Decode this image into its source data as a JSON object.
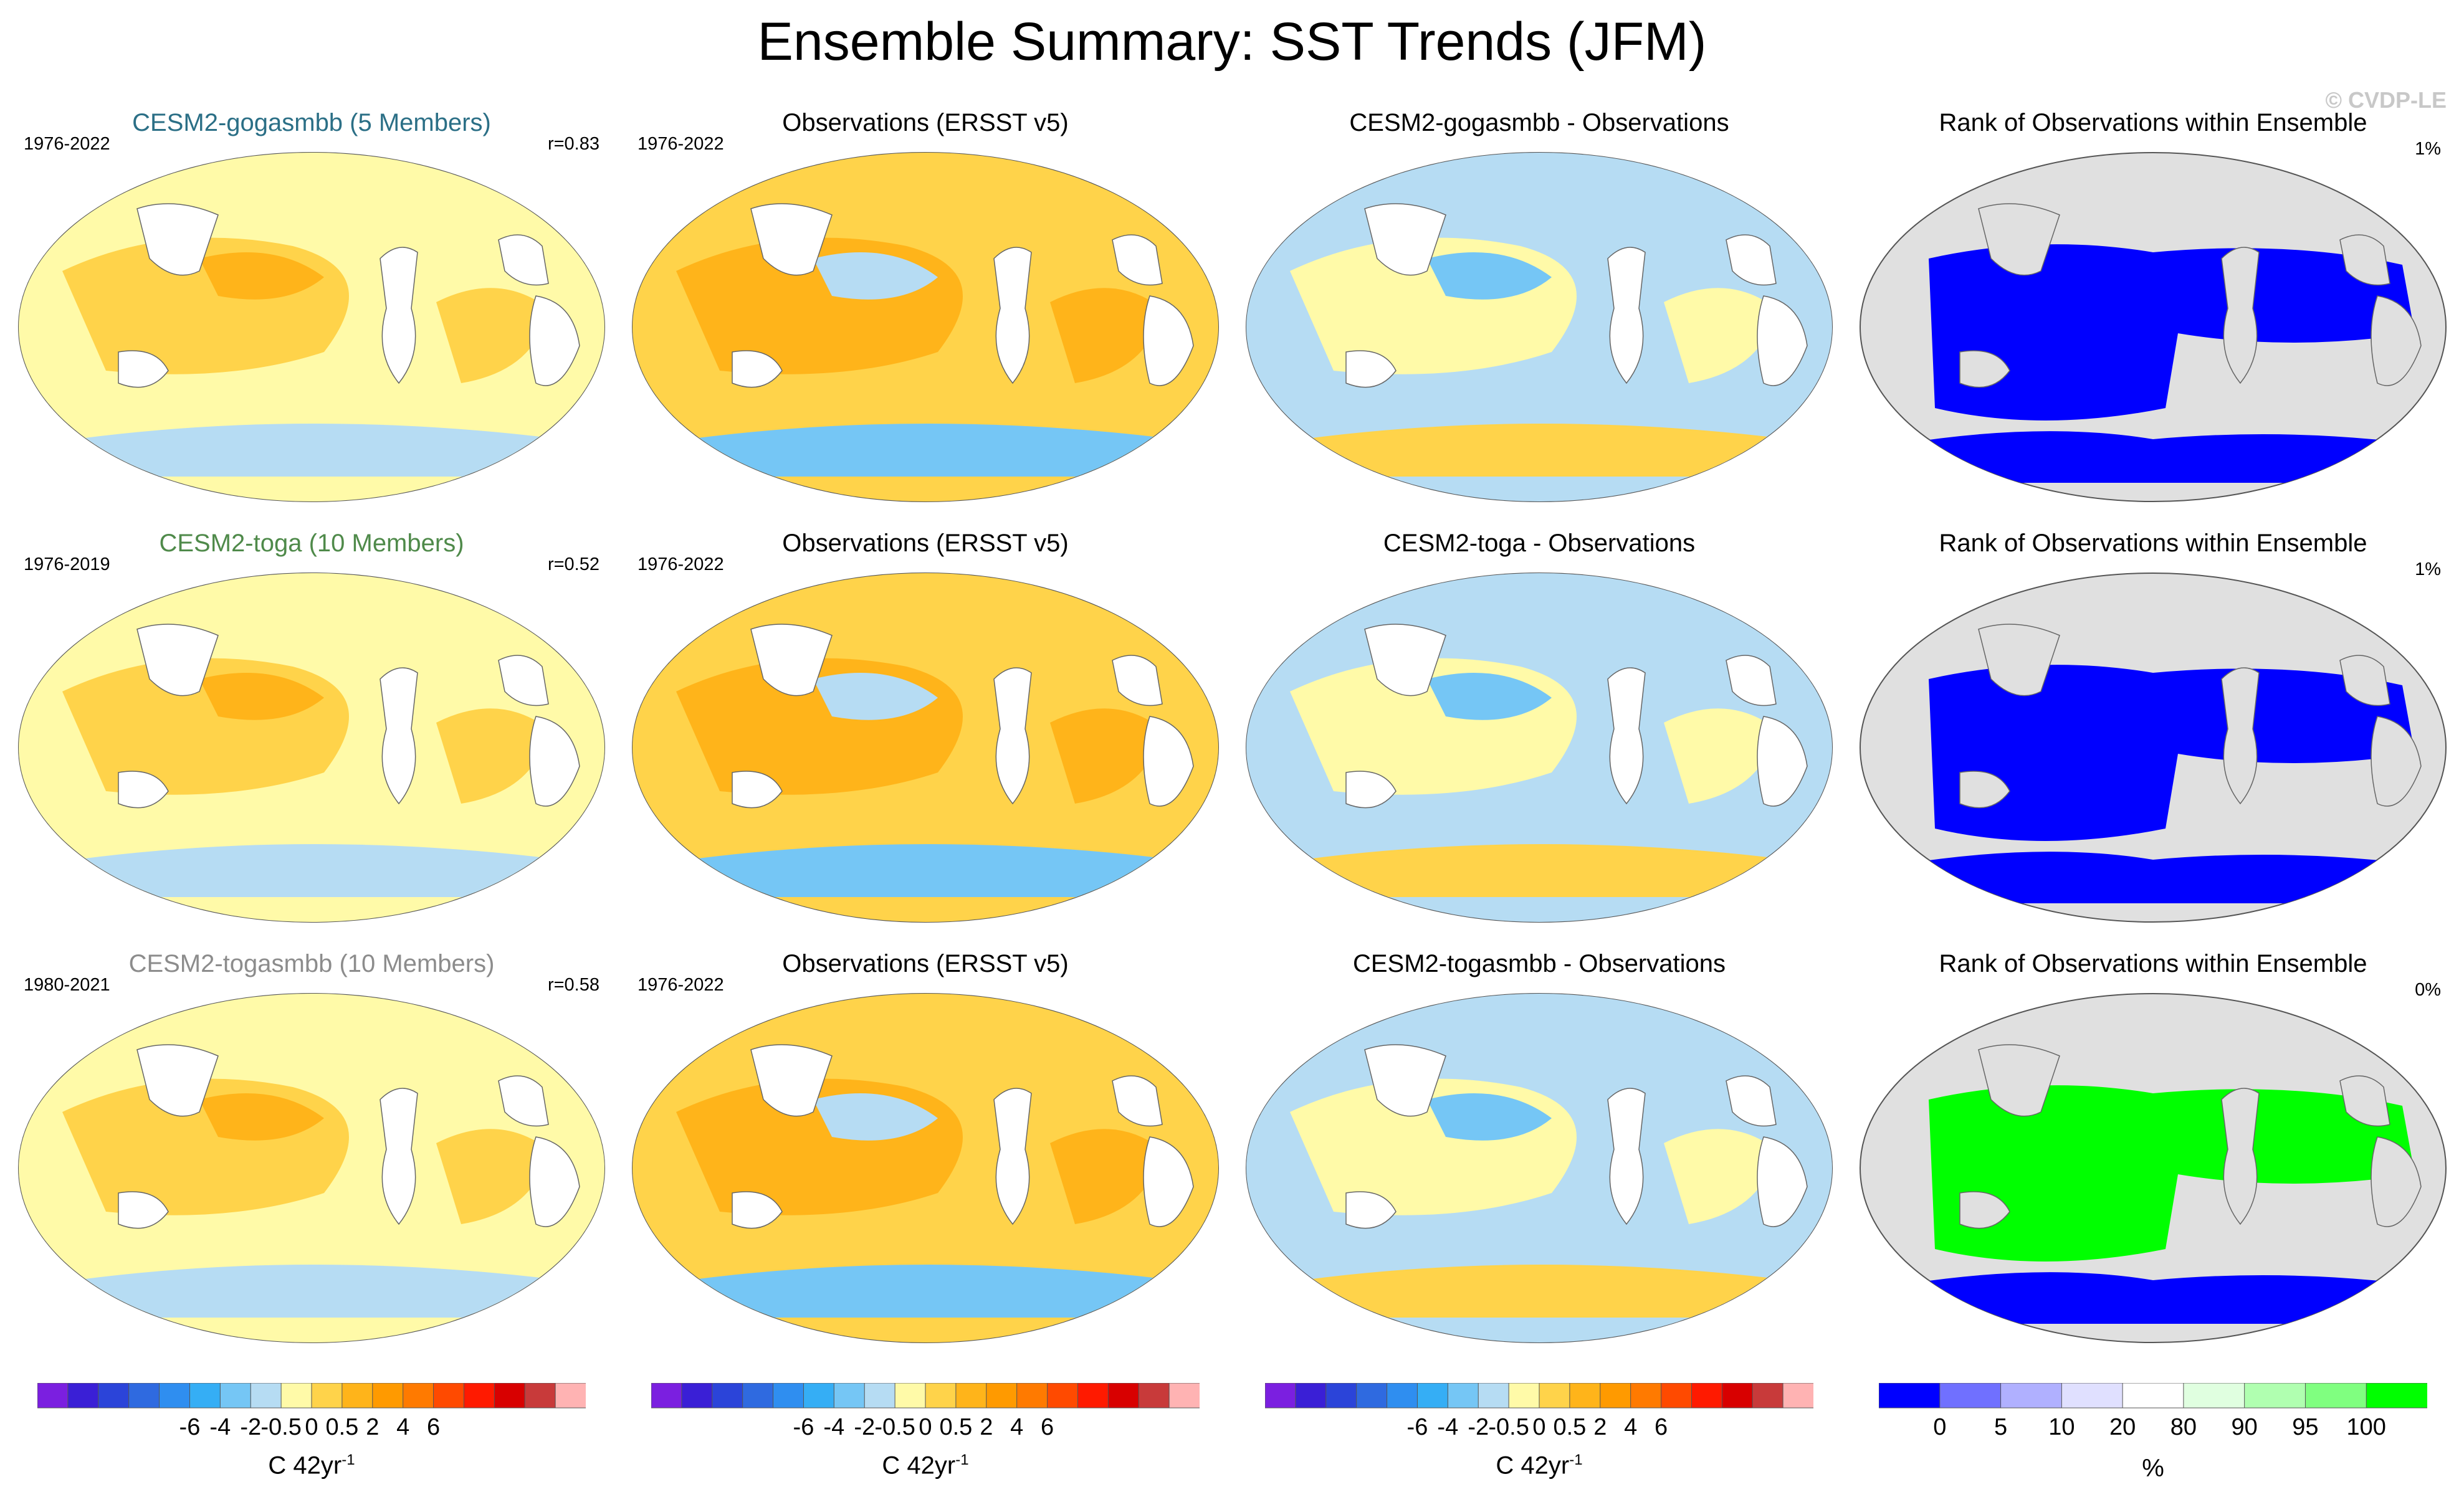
{
  "title": "Ensemble Summary: SST Trends (JFM)",
  "credit": "© CVDP-LE",
  "rows": [
    {
      "model": {
        "title": "CESM2-gogasmbb (5 Members)",
        "title_color": "#2b6f86",
        "period": "1976-2022",
        "r": "r=0.83"
      },
      "obs": {
        "title": "Observations (ERSST v5)",
        "period": "1976-2022"
      },
      "diff": {
        "title": "CESM2-gogasmbb - Observations"
      },
      "rank": {
        "title": "Rank of Observations within Ensemble",
        "pct": "1%"
      }
    },
    {
      "model": {
        "title": "CESM2-toga (10 Members)",
        "title_color": "#4f8a4a",
        "period": "1976-2019",
        "r": "r=0.52"
      },
      "obs": {
        "title": "Observations (ERSST v5)",
        "period": "1976-2022"
      },
      "diff": {
        "title": "CESM2-toga - Observations"
      },
      "rank": {
        "title": "Rank of Observations within Ensemble",
        "pct": "1%"
      }
    },
    {
      "model": {
        "title": "CESM2-togasmbb (10 Members)",
        "title_color": "#8c8c8c",
        "period": "1980-2021",
        "r": "r=0.58"
      },
      "obs": {
        "title": "Observations (ERSST v5)",
        "period": "1976-2022"
      },
      "diff": {
        "title": "CESM2-togasmbb - Observations"
      },
      "rank": {
        "title": "Rank of Observations within Ensemble",
        "pct": "0%"
      }
    }
  ],
  "trend_colorbar": {
    "unit": "C 42yr",
    "unit_sup": "-1",
    "ticks": [
      "-6",
      "-4",
      "-2",
      "-0.5",
      "0",
      "0.5",
      "2",
      "4",
      "6"
    ],
    "colors": [
      "#7b1fe0",
      "#3a1fd6",
      "#2b44d9",
      "#2f6ae0",
      "#2f8ef0",
      "#35aef5",
      "#75c6f5",
      "#b6dcf3",
      "#fffaa8",
      "#ffd34a",
      "#ffb41a",
      "#ff9a00",
      "#ff7a00",
      "#ff4a00",
      "#ff1a00",
      "#d80000",
      "#c83a3a",
      "#ffb3b3"
    ]
  },
  "rank_colorbar": {
    "unit": "%",
    "ticks": [
      "0",
      "5",
      "10",
      "20",
      "80",
      "90",
      "95",
      "100"
    ],
    "colors": [
      "#0000ff",
      "#7070ff",
      "#b0b0ff",
      "#e0e0ff",
      "#ffffff",
      "#e0ffe0",
      "#b0ffb0",
      "#80ff80",
      "#00ff00"
    ]
  }
}
